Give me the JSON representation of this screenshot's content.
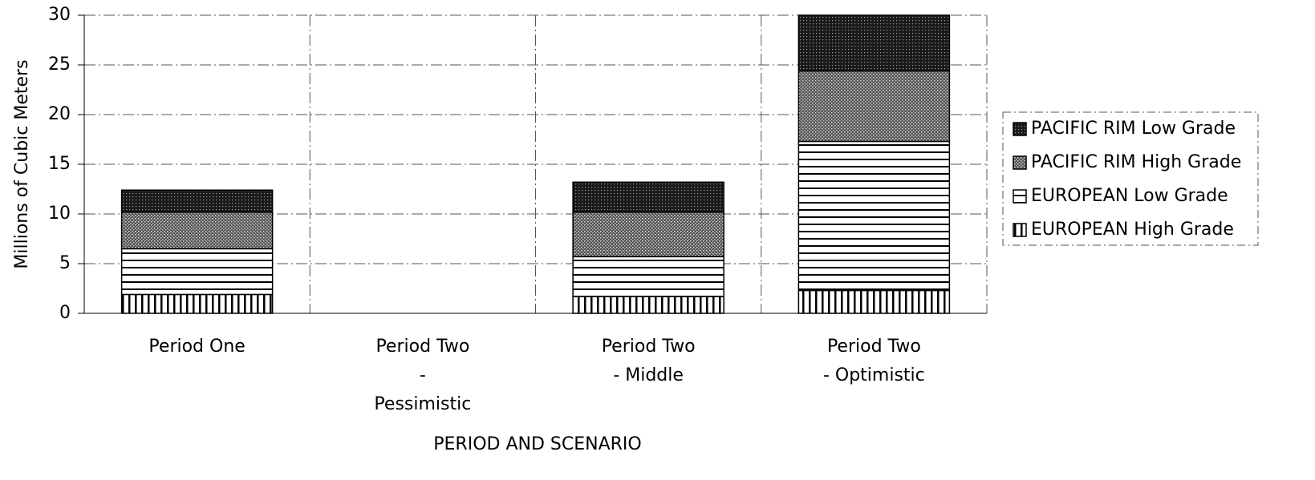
{
  "chart_data": {
    "type": "stacked_bar",
    "y_label": "Millions of Cubic Meters",
    "x_label": "PERIOD AND SCENARIO",
    "categories": [
      [
        "Period One"
      ],
      [
        "Period Two",
        "-",
        "Pessimistic"
      ],
      [
        "Period Two",
        "- Middle"
      ],
      [
        "Period Two",
        "- Optimistic"
      ]
    ],
    "series": [
      {
        "name": "EUROPEAN High Grade",
        "color": "#000000",
        "pattern": "vertical",
        "values": [
          1.9,
          0,
          1.7,
          2.3
        ]
      },
      {
        "name": "EUROPEAN Low Grade",
        "color": "#000000",
        "pattern": "horizontal",
        "values": [
          4.6,
          0,
          4.0,
          15.0
        ]
      },
      {
        "name": "PACIFIC RIM High Grade",
        "color": "#000000",
        "pattern": "dots",
        "values": [
          3.7,
          0,
          4.5,
          7.1
        ]
      },
      {
        "name": "PACIFIC RIM Low Grade",
        "color": "#000000",
        "pattern": "dense-dots",
        "values": [
          2.2,
          0,
          3.0,
          5.6
        ]
      }
    ],
    "ylim": [
      0,
      30
    ],
    "yticks": [
      0,
      5,
      10,
      15,
      20,
      25,
      30
    ],
    "grid": true,
    "legend": "right"
  }
}
